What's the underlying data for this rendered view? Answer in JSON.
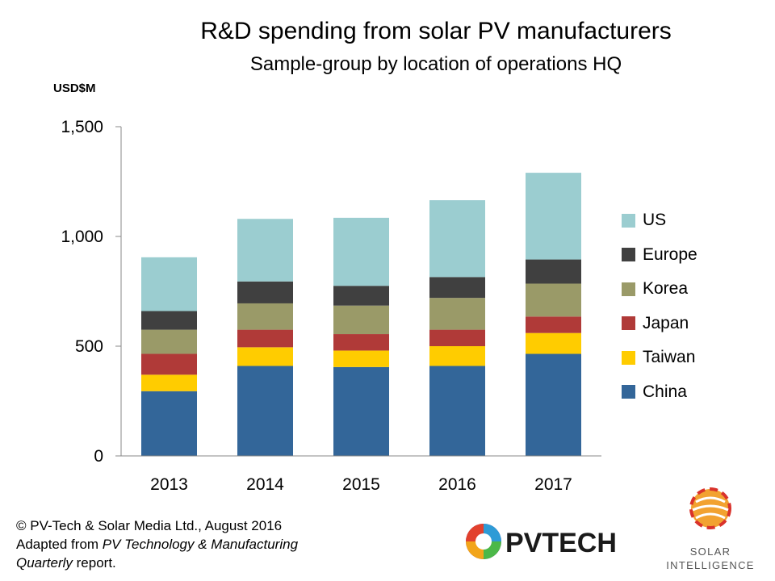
{
  "chart_data": {
    "type": "bar",
    "stacked": true,
    "title": "R&D spending  from solar PV manufacturers",
    "subtitle": "Sample-group by location of operations HQ",
    "ylabel": "USD$M",
    "xlabel": "",
    "ylim": [
      0,
      1500
    ],
    "yticks": [
      0,
      500,
      1000,
      1500
    ],
    "ytick_labels": [
      "0",
      "500",
      "1,000",
      "1,500"
    ],
    "categories": [
      "2013",
      "2014",
      "2015",
      "2016",
      "2017"
    ],
    "series": [
      {
        "name": "China",
        "color": "#336699",
        "values": [
          295,
          410,
          405,
          410,
          465
        ]
      },
      {
        "name": "Taiwan",
        "color": "#FFCC00",
        "values": [
          75,
          85,
          75,
          90,
          95
        ]
      },
      {
        "name": "Japan",
        "color": "#B03A38",
        "values": [
          95,
          80,
          75,
          75,
          75
        ]
      },
      {
        "name": "Korea",
        "color": "#9A9A68",
        "values": [
          110,
          120,
          130,
          145,
          150
        ]
      },
      {
        "name": "Europe",
        "color": "#404040",
        "values": [
          85,
          100,
          90,
          95,
          110
        ]
      },
      {
        "name": "US",
        "color": "#9BCDD0",
        "values": [
          245,
          285,
          310,
          350,
          395
        ]
      }
    ],
    "legend_position": "right",
    "grid": false
  },
  "footer": {
    "line1": "© PV-Tech & Solar Media Ltd., August 2016",
    "line2_prefix": "Adapted from ",
    "line2_italic": "PV Technology & Manufacturing",
    "line3_italic": "Quarterly",
    "line3_suffix": " report."
  },
  "logos": {
    "pvtech": "PVTECH",
    "solar_intelligence_line1": "SOLAR",
    "solar_intelligence_line2": "INTELLIGENCE"
  }
}
